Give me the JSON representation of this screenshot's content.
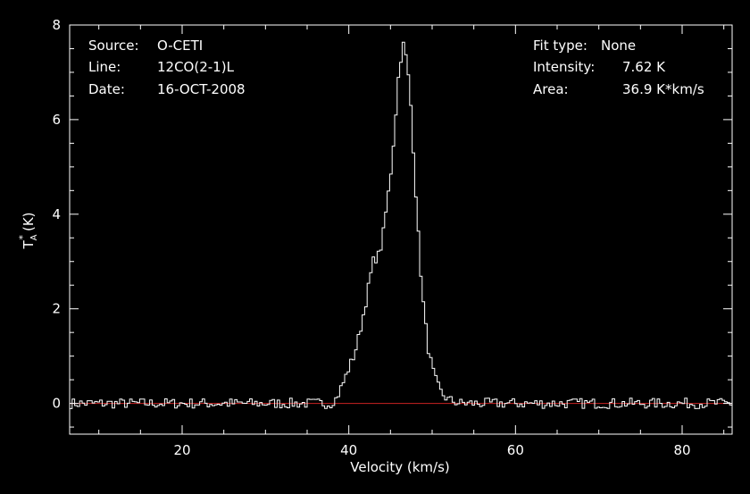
{
  "info_left": [
    {
      "key": "Source:",
      "value": "O-CETI"
    },
    {
      "key": "Line:",
      "value": "12CO(2-1)L"
    },
    {
      "key": "Date:",
      "value": "16-OCT-2008"
    }
  ],
  "info_right": [
    {
      "key": "Fit type:",
      "value": "None"
    },
    {
      "key": "Intensity:",
      "value": "7.62 K"
    },
    {
      "key": "Area:",
      "value": "36.9 K*km/s"
    }
  ],
  "colors": {
    "background": "#000000",
    "spectrum": "#ffffff",
    "baseline": "#cc2222",
    "axes": "#ffffff"
  },
  "chart_data": {
    "type": "line",
    "title": "",
    "xlabel": "Velocity (km/s)",
    "ylabel": "T_A* (K)",
    "xlim": [
      6.5,
      86
    ],
    "ylim": [
      -0.65,
      8
    ],
    "x_ticks": [
      20,
      40,
      60,
      80
    ],
    "y_ticks": [
      0,
      2,
      4,
      6,
      8
    ],
    "grid": false,
    "baseline": {
      "y": 0
    },
    "series": [
      {
        "name": "",
        "style": "steps",
        "x": [
          38,
          38.5,
          39,
          39.5,
          40,
          40.5,
          41,
          41.5,
          42,
          42.5,
          43,
          43.5,
          44,
          44.5,
          45,
          45.5,
          46,
          46.5,
          47,
          47.5,
          48,
          48.5,
          49,
          49.5,
          50,
          50.5,
          51,
          51.5,
          52,
          52.5,
          53,
          53.5,
          54
        ],
        "y": [
          0.05,
          0.1,
          0.3,
          0.5,
          0.75,
          0.95,
          1.25,
          1.65,
          2.1,
          2.6,
          3.05,
          3.1,
          3.4,
          4.1,
          4.8,
          5.8,
          7.0,
          7.62,
          7.2,
          6.2,
          4.6,
          3.1,
          2.0,
          1.2,
          0.75,
          0.45,
          0.25,
          0.15,
          0.07,
          0.05,
          0.02,
          0.0,
          0.02
        ]
      }
    ]
  }
}
